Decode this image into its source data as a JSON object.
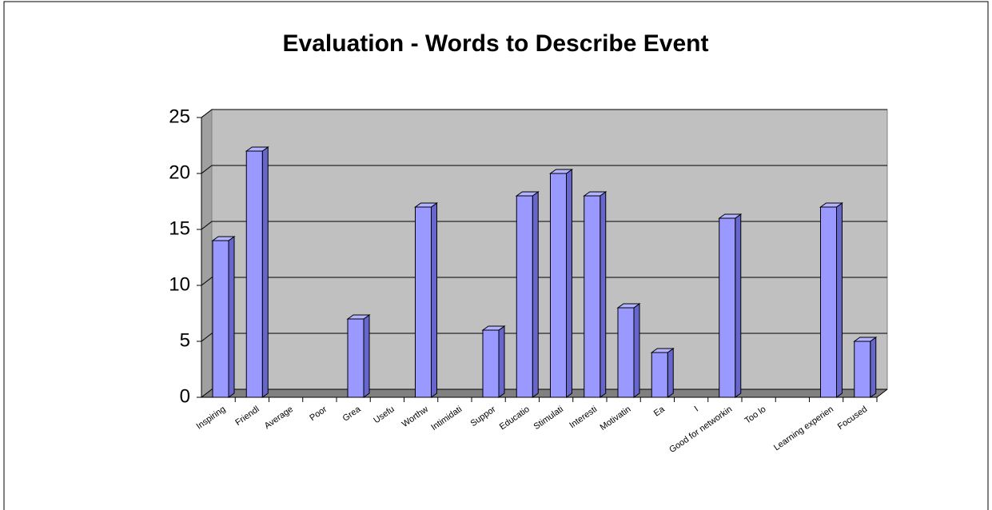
{
  "chart_data": {
    "type": "bar",
    "title": "Evaluation - Words to Describe Event",
    "categories": [
      "Inspiring",
      "Friendl",
      "Average",
      "Poor",
      "Grea",
      "Usefu",
      "Worthw",
      "Intimidati",
      "Suppor",
      "Educatio",
      "Stimulati",
      "Interesti",
      "Motivatin",
      "Ea",
      "I",
      "Good for networkin",
      "Too lo",
      null,
      "Learning experien",
      "Focused"
    ],
    "values": [
      14,
      22,
      0,
      0,
      7,
      0,
      17,
      0,
      6,
      18,
      20,
      18,
      8,
      4,
      0,
      16,
      0,
      0,
      17,
      5
    ],
    "color": "#9999ff",
    "ylim": [
      0,
      25
    ],
    "yticks": [
      0,
      5,
      10,
      15,
      20,
      25
    ],
    "grid": true
  }
}
